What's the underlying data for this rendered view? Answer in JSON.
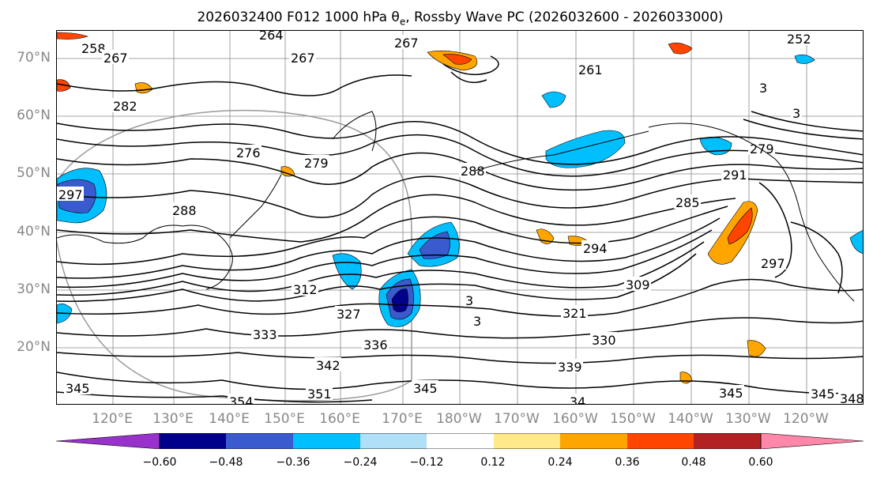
{
  "title": {
    "prefix": "2026032400 F012 1000 hPa θ",
    "subscript": "e",
    "suffix": ", Rossby Wave PC (2026032600 - 2026033000)"
  },
  "lat_labels": [
    "70°N",
    "60°N",
    "50°N",
    "40°N",
    "30°N",
    "20°N"
  ],
  "lon_labels": [
    "120°E",
    "130°E",
    "140°E",
    "150°E",
    "160°E",
    "170°E",
    "180°W",
    "170°W",
    "160°W",
    "150°W",
    "140°W",
    "130°W",
    "120°W"
  ],
  "contour_labels": [
    "264",
    "267",
    "258",
    "267",
    "267",
    "261",
    "252",
    "282",
    "276",
    "279",
    "288",
    "291",
    "279",
    "285",
    "297",
    "288",
    "294",
    "297",
    "312",
    "309",
    "321",
    "327",
    "333",
    "336",
    "330",
    "339",
    "342",
    "345",
    "351",
    "345",
    "345",
    "354",
    "345",
    "348",
    "34",
    "3",
    "3",
    "3",
    "3"
  ],
  "colorbar": {
    "colors": [
      "#9932cc",
      "#00008b",
      "#3a5bcd",
      "#00bfff",
      "#b0e0f8",
      "#ffffff",
      "#ffe98a",
      "#ffa500",
      "#ff4500",
      "#b22222",
      "#ff88aa"
    ],
    "tick_labels": [
      "−0.60",
      "−0.48",
      "−0.36",
      "−0.24",
      "−0.12",
      "0.12",
      "0.24",
      "0.36",
      "0.48",
      "0.60"
    ],
    "levels": [
      -0.6,
      -0.48,
      -0.36,
      -0.24,
      -0.12,
      0.12,
      0.24,
      0.36,
      0.48,
      0.6
    ]
  },
  "colors": {
    "positive_fill": "#ffa500",
    "negative_fill": "#00bfff",
    "contour": "#000000",
    "gridline": "#888888",
    "coastline": "#000000"
  }
}
